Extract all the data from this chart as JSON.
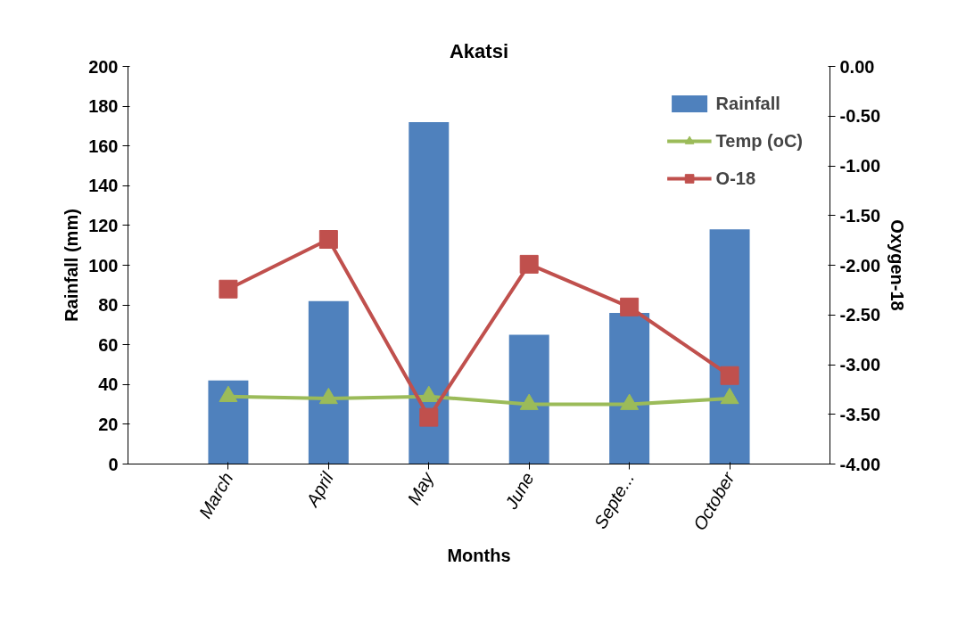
{
  "chart_data": {
    "type": "bar",
    "title": "Akatsi",
    "xlabel": "Months",
    "ylabel": "Rainfall (mm)",
    "y2label": "Oxygen-18",
    "categories": [
      "March",
      "April",
      "May",
      "June",
      "Septe...",
      "October"
    ],
    "series": [
      {
        "name": "Rainfall",
        "color": "#4f81bd",
        "values": [
          42,
          82,
          172,
          65,
          76,
          118
        ]
      },
      {
        "name": "Temp (oC)",
        "type": "line",
        "color": "#9bbb59",
        "marker": "triangle",
        "values": [
          34,
          33,
          34,
          30,
          30,
          33
        ]
      },
      {
        "name": "O-18",
        "type": "line",
        "color": "#c0504d",
        "marker": "square",
        "axis": "y2",
        "values": [
          -2.24,
          -1.74,
          -3.53,
          -1.99,
          -2.42,
          -3.11
        ]
      }
    ],
    "ylim": [
      0,
      200
    ],
    "yticks": [
      0,
      20,
      40,
      60,
      80,
      100,
      120,
      140,
      160,
      180,
      200
    ],
    "y2lim": [
      -4,
      0
    ],
    "y2ticks": [
      {
        "value": -4,
        "label": "-4.00"
      },
      {
        "value": -3.5,
        "label": "-3.50"
      },
      {
        "value": -3,
        "label": "-3.00"
      },
      {
        "value": -2.5,
        "label": "-2.50"
      },
      {
        "value": -2,
        "label": "-2.00"
      },
      {
        "value": -1.5,
        "label": "-1.50"
      },
      {
        "value": -1,
        "label": "-1.00"
      },
      {
        "value": -0.5,
        "label": "-0.50"
      },
      {
        "value": 0,
        "label": "0.00"
      }
    ],
    "grid": false,
    "legend": "top right"
  }
}
